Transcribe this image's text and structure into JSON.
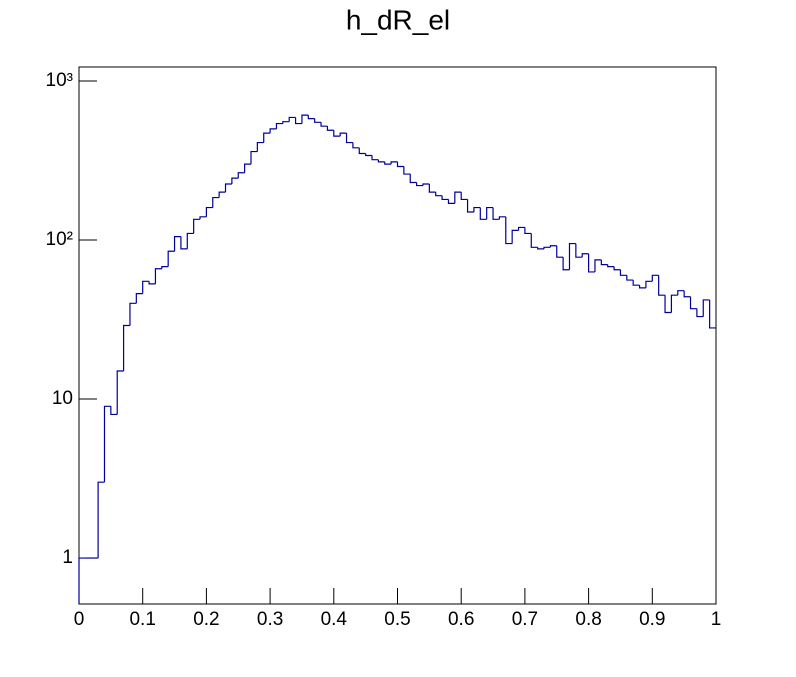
{
  "chart_data": {
    "type": "histogram",
    "title": "h_dR_el",
    "bins": [
      0,
      0.01,
      0.02,
      0.03,
      0.04,
      0.05,
      0.06,
      0.07,
      0.08,
      0.09,
      0.1,
      0.11,
      0.12,
      0.13,
      0.14,
      0.15,
      0.16,
      0.17,
      0.18,
      0.19,
      0.2,
      0.21,
      0.22,
      0.23,
      0.24,
      0.25,
      0.26,
      0.27,
      0.28,
      0.29,
      0.3,
      0.31,
      0.32,
      0.33,
      0.34,
      0.35,
      0.36,
      0.37,
      0.38,
      0.39,
      0.4,
      0.41,
      0.42,
      0.43,
      0.44,
      0.45,
      0.46,
      0.47,
      0.48,
      0.49,
      0.5,
      0.51,
      0.52,
      0.53,
      0.54,
      0.55,
      0.56,
      0.57,
      0.58,
      0.59,
      0.6,
      0.61,
      0.62,
      0.63,
      0.64,
      0.65,
      0.66,
      0.67,
      0.68,
      0.69,
      0.7,
      0.71,
      0.72,
      0.73,
      0.74,
      0.75,
      0.76,
      0.77,
      0.78,
      0.79,
      0.8,
      0.81,
      0.82,
      0.83,
      0.84,
      0.85,
      0.86,
      0.87,
      0.88,
      0.89,
      0.9,
      0.91,
      0.92,
      0.93,
      0.94,
      0.95,
      0.96,
      0.97,
      0.98,
      0.99,
      1
    ],
    "values": [
      1,
      1,
      1,
      3,
      9,
      8,
      15,
      29,
      40,
      46,
      55,
      53,
      66,
      68,
      85,
      105,
      88,
      110,
      135,
      140,
      160,
      185,
      200,
      225,
      245,
      265,
      300,
      360,
      410,
      470,
      500,
      540,
      555,
      590,
      540,
      610,
      580,
      550,
      520,
      490,
      450,
      470,
      410,
      380,
      350,
      340,
      320,
      310,
      300,
      310,
      290,
      260,
      230,
      220,
      225,
      200,
      190,
      180,
      170,
      200,
      180,
      150,
      160,
      135,
      160,
      135,
      140,
      95,
      115,
      120,
      110,
      90,
      88,
      90,
      92,
      78,
      65,
      95,
      78,
      82,
      63,
      75,
      70,
      68,
      65,
      60,
      56,
      52,
      50,
      55,
      60,
      45,
      35,
      45,
      48,
      44,
      37,
      33,
      42,
      28
    ],
    "color": "#000099",
    "xlim": [
      0,
      1
    ],
    "xticks": [
      0,
      0.1,
      0.2,
      0.3,
      0.4,
      0.5,
      0.6,
      0.7,
      0.8,
      0.9,
      1
    ],
    "ylim": [
      0.514,
      1225
    ],
    "log_y": true,
    "yticks": [
      1,
      10,
      {
        "value": 100,
        "label": "10²"
      },
      {
        "value": 1000,
        "label": "10³"
      }
    ]
  }
}
